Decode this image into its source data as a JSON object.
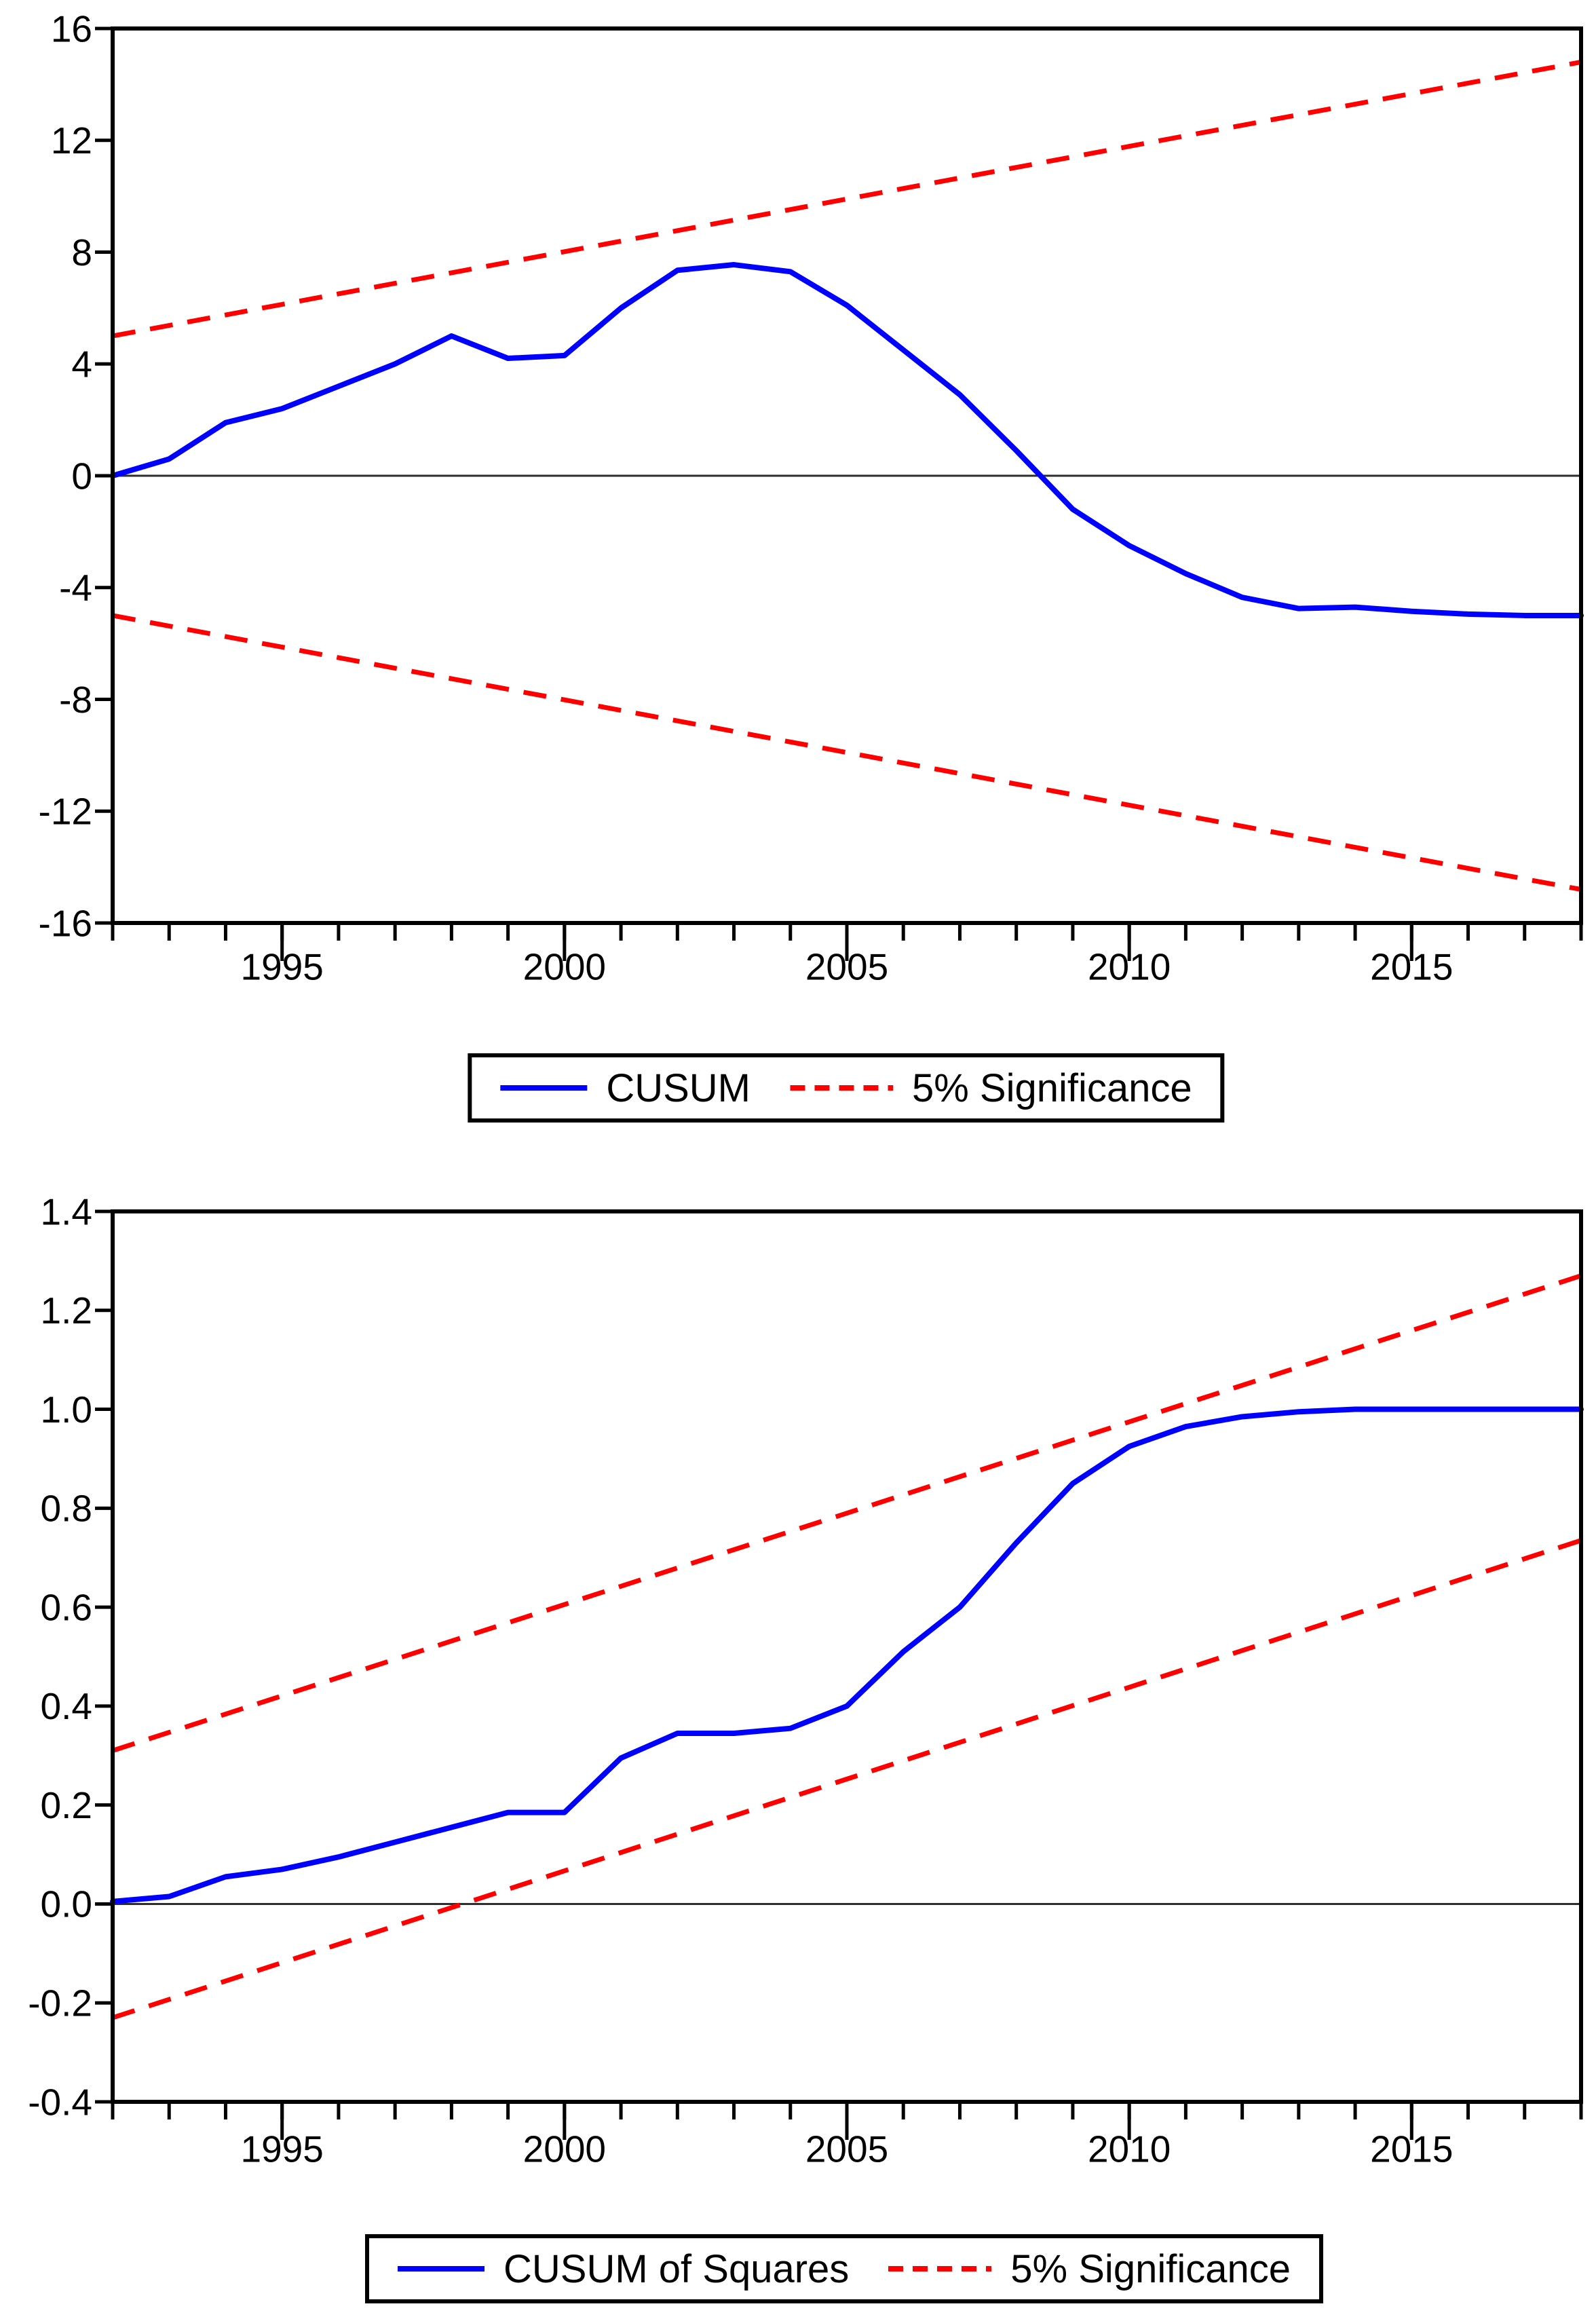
{
  "page": {
    "background": "#ffffff"
  },
  "colors": {
    "series_blue": "#0000ff",
    "band_red": "#ff0000",
    "axis": "#000000",
    "zero_line": "#2e2e2e",
    "text": "#000000",
    "legend_border": "#000000"
  },
  "chart_data": [
    {
      "type": "line",
      "name": "cusum-test",
      "title": "",
      "xlabel": "",
      "ylabel": "",
      "x_range": [
        1992,
        2018
      ],
      "y_range": [
        -16,
        16
      ],
      "zero_line": 0,
      "grid": false,
      "x": [
        1992,
        1993,
        1994,
        1995,
        1996,
        1997,
        1998,
        1999,
        2000,
        2001,
        2002,
        2003,
        2004,
        2005,
        2006,
        2007,
        2008,
        2009,
        2010,
        2011,
        2012,
        2013,
        2014,
        2015,
        2016,
        2017,
        2018
      ],
      "series": [
        {
          "name": "CUSUM",
          "style": "solid",
          "color_key": "series_blue",
          "values": [
            0.0,
            0.6,
            1.9,
            2.4,
            3.2,
            4.0,
            5.0,
            4.2,
            4.3,
            6.0,
            7.35,
            7.55,
            7.3,
            6.1,
            4.5,
            2.9,
            0.9,
            -1.2,
            -2.5,
            -3.5,
            -4.35,
            -4.75,
            -4.7,
            -4.85,
            -4.95,
            -5.0,
            -5.0
          ]
        }
      ],
      "bands": [
        {
          "name": "5% Significance upper",
          "style": "dashed",
          "color_key": "band_red",
          "x": [
            1992,
            2018
          ],
          "values": [
            5.0,
            14.8
          ]
        },
        {
          "name": "5% Significance lower",
          "style": "dashed",
          "color_key": "band_red",
          "x": [
            1992,
            2018
          ],
          "values": [
            -5.0,
            -14.8
          ]
        }
      ],
      "y_ticks": [
        {
          "v": 16,
          "label": "16"
        },
        {
          "v": 12,
          "label": "12"
        },
        {
          "v": 8,
          "label": "8"
        },
        {
          "v": 4,
          "label": "4"
        },
        {
          "v": 0,
          "label": "0"
        },
        {
          "v": -4,
          "label": "-4"
        },
        {
          "v": -8,
          "label": "-8"
        },
        {
          "v": -12,
          "label": "-12"
        },
        {
          "v": -16,
          "label": "-16"
        }
      ],
      "x_major_ticks": [
        {
          "v": 1995,
          "label": "1995"
        },
        {
          "v": 2000,
          "label": "2000"
        },
        {
          "v": 2005,
          "label": "2005"
        },
        {
          "v": 2010,
          "label": "2010"
        },
        {
          "v": 2015,
          "label": "2015"
        }
      ],
      "x_minor_step": 1,
      "legend_position": "bottom-center",
      "legend": [
        {
          "label": "CUSUM",
          "swatch": "solid-blue"
        },
        {
          "label": "5% Significance",
          "swatch": "dashed-red"
        }
      ]
    },
    {
      "type": "line",
      "name": "cusum-of-squares-test",
      "title": "",
      "xlabel": "",
      "ylabel": "",
      "x_range": [
        1992,
        2018
      ],
      "y_range": [
        -0.4,
        1.4
      ],
      "zero_line": 0,
      "grid": false,
      "x": [
        1992,
        1993,
        1994,
        1995,
        1996,
        1997,
        1998,
        1999,
        2000,
        2001,
        2002,
        2003,
        2004,
        2005,
        2006,
        2007,
        2008,
        2009,
        2010,
        2011,
        2012,
        2013,
        2014,
        2015,
        2016,
        2017,
        2018
      ],
      "series": [
        {
          "name": "CUSUM of Squares",
          "style": "solid",
          "color_key": "series_blue",
          "values": [
            0.005,
            0.015,
            0.055,
            0.07,
            0.095,
            0.125,
            0.155,
            0.185,
            0.185,
            0.295,
            0.345,
            0.345,
            0.355,
            0.4,
            0.51,
            0.6,
            0.73,
            0.85,
            0.925,
            0.965,
            0.985,
            0.995,
            1.0,
            1.0,
            1.0,
            1.0,
            1.0
          ]
        }
      ],
      "bands": [
        {
          "name": "5% Significance upper",
          "style": "dashed",
          "color_key": "band_red",
          "x": [
            1992,
            2018
          ],
          "values": [
            0.31,
            1.27
          ]
        },
        {
          "name": "5% Significance lower",
          "style": "dashed",
          "color_key": "band_red",
          "x": [
            1992,
            2018
          ],
          "values": [
            -0.23,
            0.735
          ]
        }
      ],
      "y_ticks": [
        {
          "v": 1.4,
          "label": "1.4"
        },
        {
          "v": 1.2,
          "label": "1.2"
        },
        {
          "v": 1.0,
          "label": "1.0"
        },
        {
          "v": 0.8,
          "label": "0.8"
        },
        {
          "v": 0.6,
          "label": "0.6"
        },
        {
          "v": 0.4,
          "label": "0.4"
        },
        {
          "v": 0.2,
          "label": "0.2"
        },
        {
          "v": 0.0,
          "label": "0.0"
        },
        {
          "v": -0.2,
          "label": "-0.2"
        },
        {
          "v": -0.4,
          "label": "-0.4"
        }
      ],
      "x_major_ticks": [
        {
          "v": 1995,
          "label": "1995"
        },
        {
          "v": 2000,
          "label": "2000"
        },
        {
          "v": 2005,
          "label": "2005"
        },
        {
          "v": 2010,
          "label": "2010"
        },
        {
          "v": 2015,
          "label": "2015"
        }
      ],
      "x_minor_step": 1,
      "legend_position": "bottom-center",
      "legend": [
        {
          "label": "CUSUM of Squares",
          "swatch": "solid-blue"
        },
        {
          "label": "5% Significance",
          "swatch": "dashed-red"
        }
      ]
    }
  ]
}
